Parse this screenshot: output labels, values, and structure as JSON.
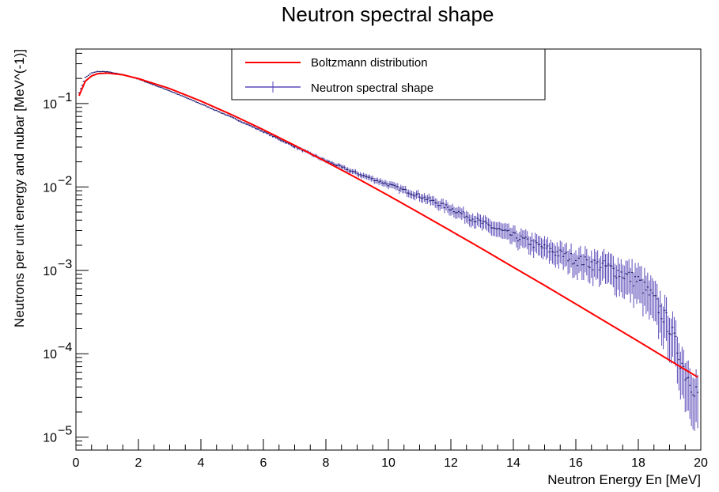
{
  "chart_data": {
    "type": "line",
    "title": "Neutron spectral shape",
    "xlabel": "Neutron Energy En [MeV]",
    "ylabel": "Neutrons per unit energy and nubar [MeV^(-1)]",
    "xlim": [
      0,
      20
    ],
    "ylim": [
      7e-06,
      0.45
    ],
    "yscale": "log",
    "grid": false,
    "legend_position": "top-center",
    "x_ticks": [
      "0",
      "2",
      "4",
      "6",
      "8",
      "10",
      "12",
      "14",
      "16",
      "18",
      "20"
    ],
    "y_ticks": [
      {
        "value": 1e-05,
        "mantissa": "10",
        "exp": "−5"
      },
      {
        "value": 0.0001,
        "mantissa": "10",
        "exp": "−4"
      },
      {
        "value": 0.001,
        "mantissa": "10",
        "exp": "−3"
      },
      {
        "value": 0.01,
        "mantissa": "10",
        "exp": "−2"
      },
      {
        "value": 0.1,
        "mantissa": "10",
        "exp": "−1"
      }
    ],
    "series": [
      {
        "name": "Boltzmann distribution",
        "color": "#ff0000",
        "style": "line",
        "x": [
          0.1,
          0.3,
          0.5,
          0.7,
          1.0,
          1.5,
          2.0,
          3.0,
          4.0,
          5.0,
          6.0,
          7.0,
          8.0,
          9.0,
          10.0,
          11.0,
          12.0,
          13.0,
          14.0,
          15.0,
          16.0,
          17.0,
          18.0,
          19.0,
          19.9
        ],
        "y": [
          0.124,
          0.185,
          0.214,
          0.228,
          0.232,
          0.221,
          0.199,
          0.151,
          0.107,
          0.073,
          0.0485,
          0.0315,
          0.0201,
          0.0127,
          0.0079,
          0.00486,
          0.00297,
          0.00181,
          0.00109,
          0.00066,
          0.000395,
          0.000236,
          0.000141,
          8.35e-05,
          5.25e-05
        ]
      },
      {
        "name": "Neutron spectral shape",
        "color": "#5a4ab8",
        "style": "errorbar",
        "x": [
          0.1,
          0.3,
          0.5,
          0.7,
          1.0,
          1.5,
          2.0,
          3.0,
          4.0,
          5.0,
          6.0,
          7.0,
          8.0,
          9.0,
          10.0,
          11.0,
          12.0,
          13.0,
          14.0,
          15.0,
          16.0,
          17.0,
          18.0,
          18.5,
          19.0,
          19.5,
          19.9
        ],
        "y": [
          0.135,
          0.205,
          0.232,
          0.242,
          0.241,
          0.222,
          0.196,
          0.142,
          0.099,
          0.068,
          0.046,
          0.0305,
          0.0205,
          0.0145,
          0.0107,
          0.0078,
          0.0055,
          0.0037,
          0.0026,
          0.00185,
          0.00135,
          0.0011,
          0.00075,
          0.00045,
          0.00022,
          6e-05,
          3.5e-05
        ]
      }
    ]
  }
}
